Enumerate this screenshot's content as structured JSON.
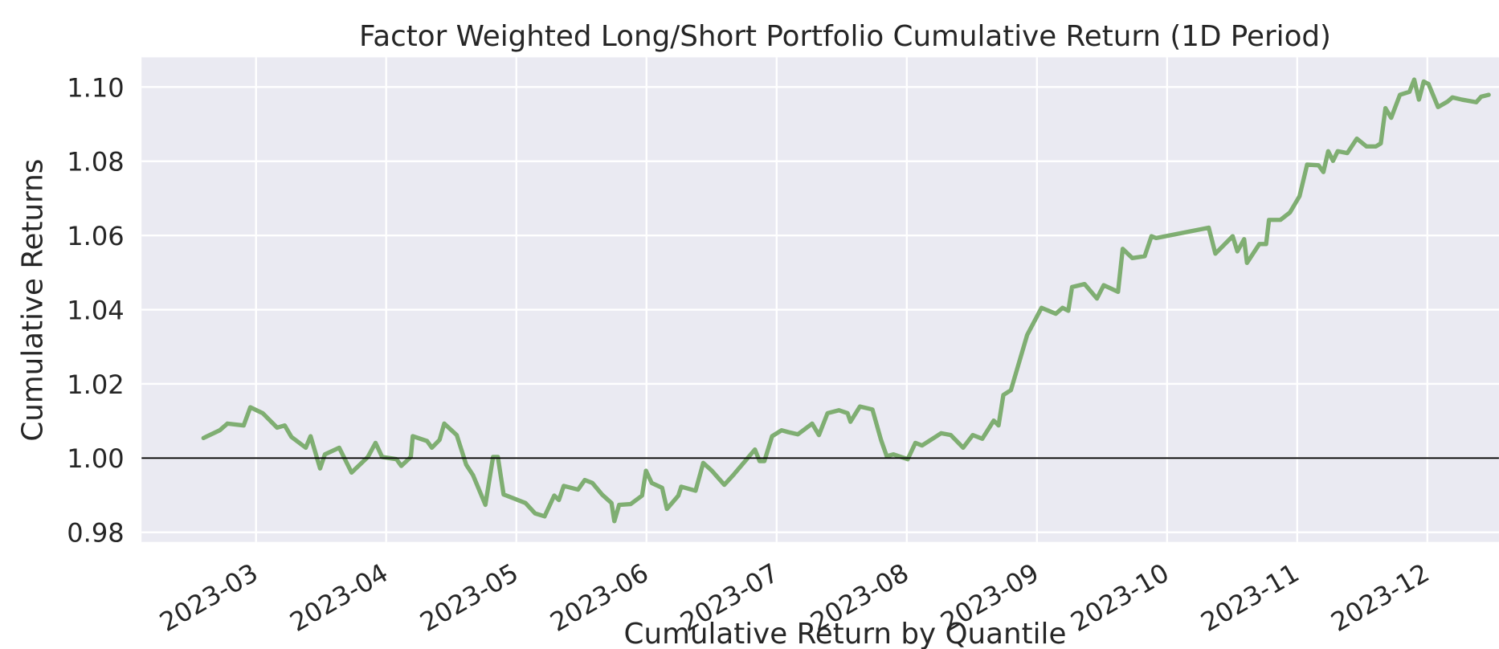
{
  "chart_data": {
    "type": "line",
    "title": "Factor Weighted Long/Short Portfolio Cumulative Return (1D Period)",
    "ylabel": "Cumulative Returns",
    "xlabel": "Cumulative Return by Quantile",
    "x": [
      2.596,
      2.721,
      2.78,
      2.905,
      2.956,
      3.051,
      3.162,
      3.22,
      3.272,
      3.382,
      3.419,
      3.492,
      3.529,
      3.639,
      3.734,
      3.859,
      3.918,
      3.969,
      4.079,
      4.116,
      4.189,
      4.204,
      4.314,
      4.351,
      4.41,
      4.446,
      4.542,
      4.615,
      4.667,
      4.762,
      4.821,
      4.858,
      4.902,
      5.07,
      5.144,
      5.217,
      5.291,
      5.327,
      5.364,
      5.474,
      5.526,
      5.584,
      5.658,
      5.731,
      5.753,
      5.79,
      5.878,
      5.966,
      5.996,
      6.04,
      6.12,
      6.157,
      6.245,
      6.267,
      6.377,
      6.436,
      6.502,
      6.598,
      6.671,
      6.833,
      6.869,
      6.906,
      6.965,
      7.038,
      7.09,
      7.163,
      7.273,
      7.325,
      7.391,
      7.479,
      7.545,
      7.567,
      7.64,
      7.736,
      7.802,
      7.846,
      7.897,
      8.007,
      8.066,
      8.117,
      8.264,
      8.338,
      8.433,
      8.507,
      8.58,
      8.668,
      8.705,
      8.742,
      8.8,
      8.925,
      9.035,
      9.145,
      9.197,
      9.241,
      9.27,
      9.366,
      9.461,
      9.513,
      9.623,
      9.659,
      9.733,
      9.828,
      9.88,
      9.916,
      10.32,
      10.371,
      10.43,
      10.504,
      10.54,
      10.592,
      10.614,
      10.709,
      10.761,
      10.783,
      10.871,
      10.944,
      11.018,
      11.076,
      11.164,
      11.201,
      11.238,
      11.275,
      11.311,
      11.385,
      11.458,
      11.532,
      11.605,
      11.642,
      11.678,
      11.722,
      11.789,
      11.862,
      11.899,
      11.935,
      11.972,
      12.009,
      12.082,
      12.156,
      12.192,
      12.266,
      12.376,
      12.413,
      12.471
    ],
    "series": [
      {
        "color": "#7fae72",
        "values": [
          1.0054,
          1.0075,
          1.0093,
          1.0088,
          1.0137,
          1.0121,
          1.0082,
          1.0088,
          1.0057,
          1.0028,
          1.0059,
          0.9972,
          1.001,
          1.0028,
          0.9961,
          1.0003,
          1.0041,
          1.0003,
          0.9997,
          0.9979,
          1.0003,
          1.0059,
          1.0046,
          1.0028,
          1.0049,
          1.0093,
          1.0062,
          0.9982,
          0.9954,
          0.9874,
          1.0003,
          1.0003,
          0.9902,
          0.9879,
          0.9851,
          0.9843,
          0.9899,
          0.9887,
          0.9925,
          0.9915,
          0.9941,
          0.9933,
          0.9902,
          0.9879,
          0.983,
          0.9874,
          0.9876,
          0.9899,
          0.9966,
          0.9933,
          0.992,
          0.9863,
          0.9899,
          0.9923,
          0.9912,
          0.9987,
          0.9966,
          0.9928,
          0.9956,
          1.0023,
          0.9992,
          0.9992,
          1.0059,
          1.0075,
          1.007,
          1.0064,
          1.0093,
          1.0062,
          1.0121,
          1.0129,
          1.0121,
          1.0098,
          1.0139,
          1.0131,
          1.0049,
          1.0005,
          1.001,
          0.9997,
          1.0041,
          1.0034,
          1.0067,
          1.0062,
          1.0028,
          1.0062,
          1.0052,
          1.0101,
          1.0088,
          1.017,
          1.0183,
          1.0332,
          1.0405,
          1.0389,
          1.0405,
          1.0397,
          1.0461,
          1.0469,
          1.043,
          1.0466,
          1.0448,
          1.0564,
          1.0539,
          1.0544,
          1.0598,
          1.0593,
          1.0621,
          1.0551,
          1.0572,
          1.0598,
          1.0557,
          1.059,
          1.0526,
          1.0577,
          1.0577,
          1.0642,
          1.0642,
          1.0662,
          1.0706,
          1.0791,
          1.0789,
          1.0771,
          1.0827,
          1.0801,
          1.0827,
          1.0822,
          1.0861,
          1.084,
          1.084,
          1.0848,
          1.0943,
          1.0917,
          1.0979,
          1.0987,
          1.102,
          1.0966,
          1.1015,
          1.1008,
          1.0946,
          1.0961,
          1.0972,
          1.0966,
          1.0959,
          1.0974,
          1.0979
        ]
      }
    ],
    "xlim": [
      2.12,
      12.55
    ],
    "xticks": [
      {
        "value": 3,
        "label": "2023-03"
      },
      {
        "value": 4,
        "label": "2023-04"
      },
      {
        "value": 5,
        "label": "2023-05"
      },
      {
        "value": 6,
        "label": "2023-06"
      },
      {
        "value": 7,
        "label": "2023-07"
      },
      {
        "value": 8,
        "label": "2023-08"
      },
      {
        "value": 9,
        "label": "2023-09"
      },
      {
        "value": 10,
        "label": "2023-10"
      },
      {
        "value": 11,
        "label": "2023-11"
      },
      {
        "value": 12,
        "label": "2023-12"
      }
    ],
    "ylim": [
      0.9774,
      1.108
    ],
    "yticks": [
      0.98,
      {
        "value": 1.0,
        "label": "1.00"
      },
      1.02,
      1.04,
      1.06,
      1.08,
      {
        "value": 1.1,
        "label": "1.10"
      }
    ],
    "hline": 1,
    "hline_color": "#000000",
    "grid": true
  }
}
